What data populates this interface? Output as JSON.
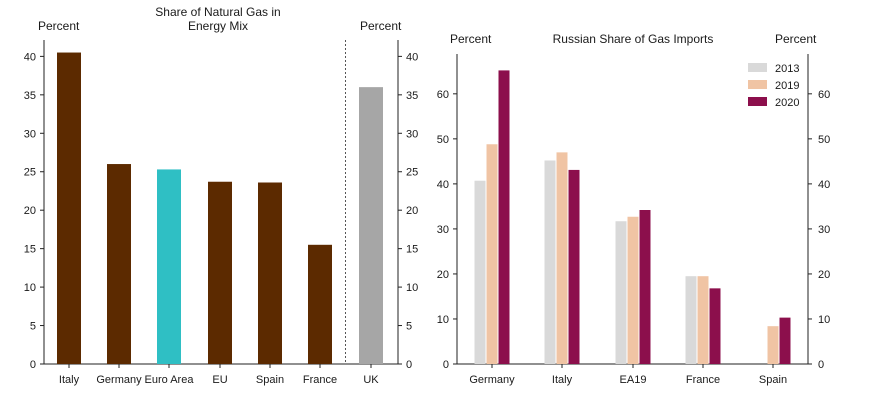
{
  "colors": {
    "brown": "#5c2a00",
    "teal": "#2fbfc4",
    "gray": "#a6a6a6",
    "s2013": "#d9d9d9",
    "s2019": "#f0c4a4",
    "s2020": "#8c0f4c"
  },
  "chart_data": [
    {
      "type": "bar",
      "title": "Share of Natural Gas in Energy Mix",
      "title_lines": [
        "Share of Natural Gas in",
        "Energy Mix"
      ],
      "ylabel_left": "Percent",
      "ylabel_right": "Percent",
      "ylim": [
        0,
        42
      ],
      "yticks": [
        0,
        5,
        10,
        15,
        20,
        25,
        30,
        35,
        40
      ],
      "categories": [
        "Italy",
        "Germany",
        "Euro Area",
        "EU",
        "Spain",
        "France",
        "UK"
      ],
      "values": [
        40.5,
        26,
        25.3,
        23.7,
        23.6,
        15.5,
        36
      ],
      "bar_colors": [
        "#5c2a00",
        "#5c2a00",
        "#2fbfc4",
        "#5c2a00",
        "#5c2a00",
        "#5c2a00",
        "#a6a6a6"
      ],
      "separator_before": "UK",
      "grid": false
    },
    {
      "type": "bar",
      "title": "Russian Share of Gas Imports",
      "ylabel_left": "Percent",
      "ylabel_right": "Percent",
      "ylim": [
        0,
        68
      ],
      "yticks": [
        0,
        10,
        20,
        30,
        40,
        50,
        60
      ],
      "categories": [
        "Germany",
        "Italy",
        "EA19",
        "France",
        "Spain"
      ],
      "series": [
        {
          "name": "2013",
          "color": "#d9d9d9",
          "values": [
            40.7,
            45.2,
            31.7,
            19.5,
            null
          ]
        },
        {
          "name": "2019",
          "color": "#f0c4a4",
          "values": [
            48.8,
            47,
            32.7,
            19.5,
            8.4
          ]
        },
        {
          "name": "2020",
          "color": "#8c0f4c",
          "values": [
            65.2,
            43.1,
            34.2,
            16.8,
            10.3
          ]
        }
      ],
      "legend_position": "top-right",
      "grid": false
    }
  ]
}
